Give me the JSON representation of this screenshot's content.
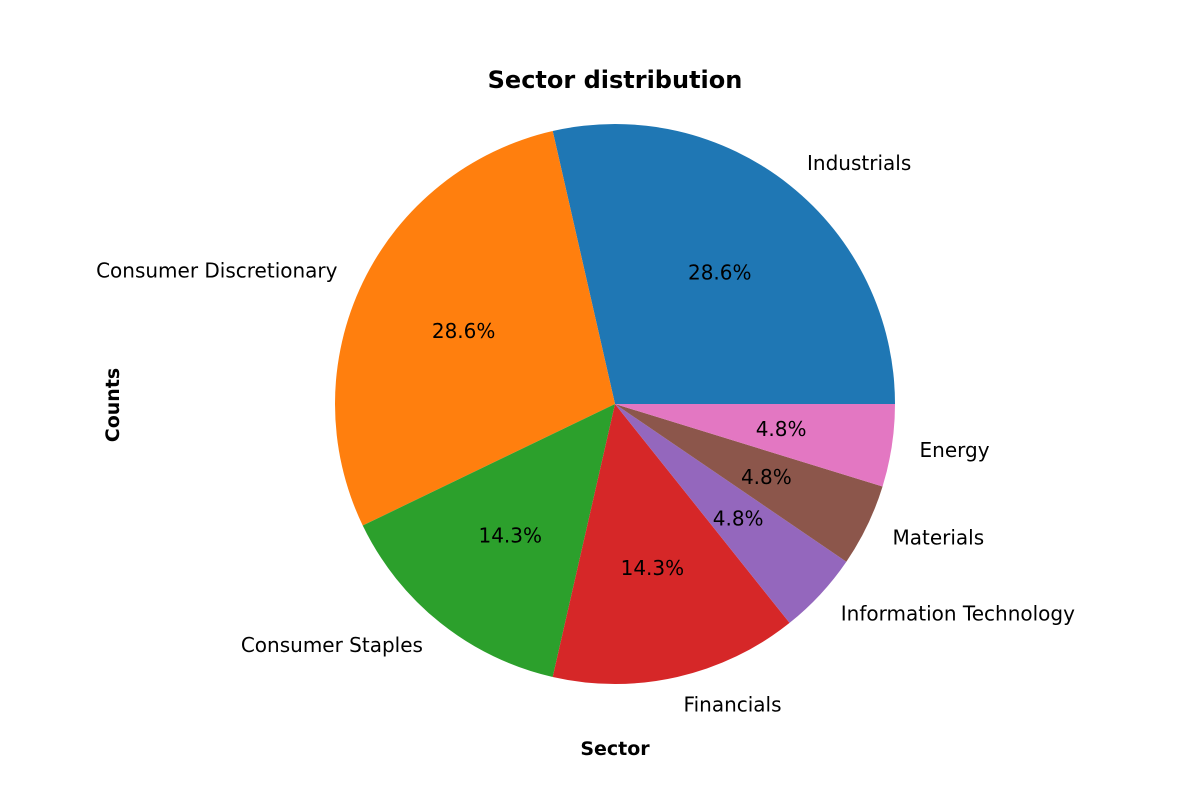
{
  "chart_data": {
    "type": "pie",
    "title": "Sector distribution",
    "xlabel": "Sector",
    "ylabel": "Counts",
    "categories": [
      "Industrials",
      "Consumer Discretionary",
      "Consumer Staples",
      "Financials",
      "Information Technology",
      "Materials",
      "Energy"
    ],
    "values": [
      6,
      6,
      3,
      3,
      1,
      1,
      1
    ],
    "percent_labels": [
      "28.6%",
      "28.6%",
      "14.3%",
      "14.3%",
      "4.8%",
      "4.8%",
      "4.8%"
    ],
    "colors": [
      "#1f77b4",
      "#ff7f0e",
      "#2ca02c",
      "#d62728",
      "#9467bd",
      "#8c564b",
      "#e377c2"
    ],
    "start_angle_deg": 0,
    "direction": "counterclockwise"
  }
}
